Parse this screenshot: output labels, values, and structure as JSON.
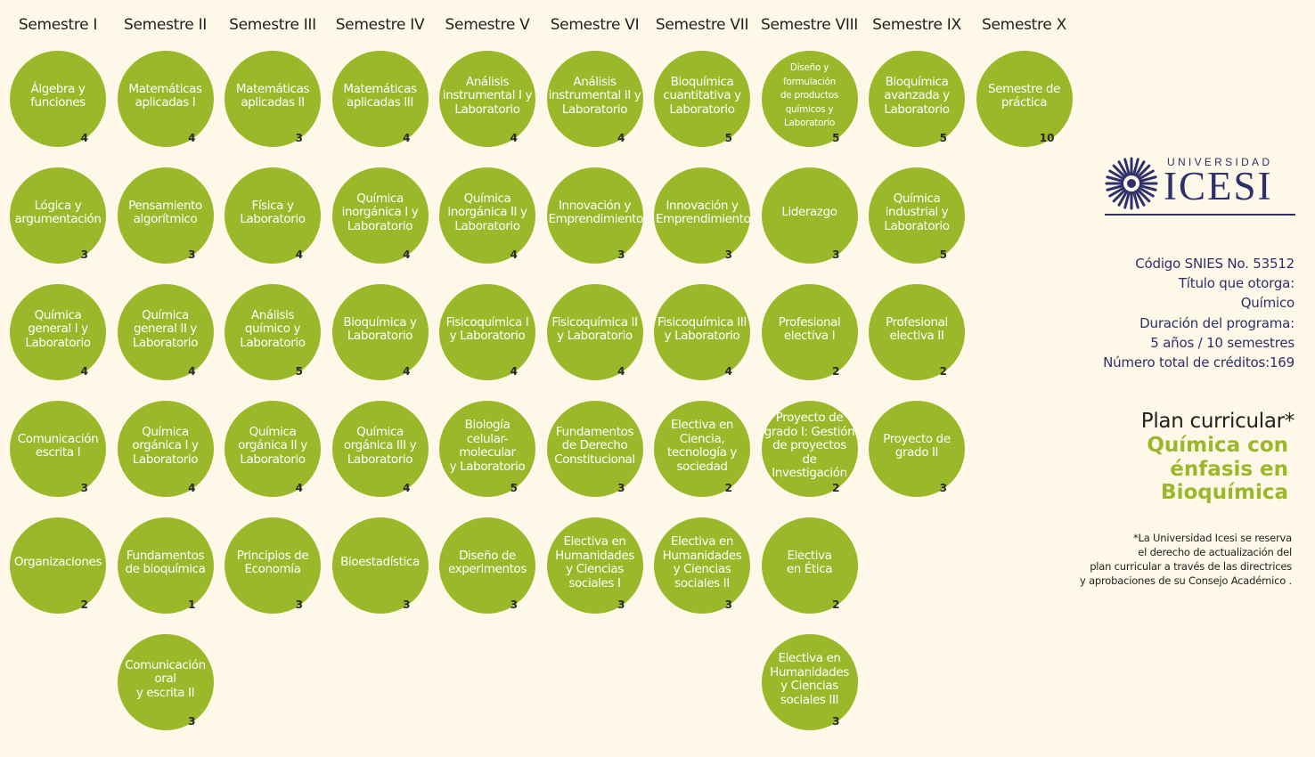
{
  "semesters": [
    {
      "title": "Semestre I",
      "courses": [
        {
          "name": "Álgebra y\nfunciones",
          "credits": "4"
        },
        {
          "name": "Lógica y\nargumentación",
          "credits": "3"
        },
        {
          "name": "Química\ngeneral I y\nLaboratorio",
          "credits": "4"
        },
        {
          "name": "Comunicación\nescrita I",
          "credits": "3"
        },
        {
          "name": "Organizaciones",
          "credits": "2"
        }
      ]
    },
    {
      "title": "Semestre II",
      "courses": [
        {
          "name": "Matemáticas\naplicadas I",
          "credits": "4"
        },
        {
          "name": "Pensamiento\nalgorítmico",
          "credits": "3"
        },
        {
          "name": "Química\ngeneral II y\nLaboratorio",
          "credits": "4"
        },
        {
          "name": "Química\norgánica I y\nLaboratorio",
          "credits": "4"
        },
        {
          "name": "Fundamentos\nde bioquímica",
          "credits": "1"
        },
        {
          "name": "Comunicación\noral\ny escrita II",
          "credits": "3"
        }
      ]
    },
    {
      "title": "Semestre III",
      "courses": [
        {
          "name": "Matemáticas\naplicadas II",
          "credits": "3"
        },
        {
          "name": "Física y\nLaboratorio",
          "credits": "4"
        },
        {
          "name": "Análisis\nquímico y\nLaboratorio",
          "credits": "5"
        },
        {
          "name": "Química\norgánica II y\nLaboratorio",
          "credits": "4"
        },
        {
          "name": "Principios de\nEconomía",
          "credits": "3"
        }
      ]
    },
    {
      "title": "Semestre IV",
      "courses": [
        {
          "name": "Matemáticas\naplicadas III",
          "credits": "4"
        },
        {
          "name": "Química\ninorgánica I y\nLaboratorio",
          "credits": "4"
        },
        {
          "name": "Bioquímica y\nLaboratorio",
          "credits": "4"
        },
        {
          "name": "Química\norgánica III y\nLaboratorio",
          "credits": "4"
        },
        {
          "name": "Bioestadística",
          "credits": "3"
        }
      ]
    },
    {
      "title": "Semestre V",
      "courses": [
        {
          "name": "Análisis\ninstrumental I y\nLaboratorio",
          "credits": "4"
        },
        {
          "name": "Química\ninorgánica II y\nLaboratorio",
          "credits": "4"
        },
        {
          "name": "Fisicoquímica I\ny Laboratorio",
          "credits": "4"
        },
        {
          "name": "Biología\ncelular-molecular\ny Laboratorio",
          "credits": "5"
        },
        {
          "name": "Diseño de\nexperimentos",
          "credits": "3"
        }
      ]
    },
    {
      "title": "Semestre VI",
      "courses": [
        {
          "name": "Análisis\ninstrumental II y\nLaboratorio",
          "credits": "4"
        },
        {
          "name": "Innovación y\nEmprendimiento",
          "credits": "3"
        },
        {
          "name": "Fisicoquímica II\ny Laboratorio",
          "credits": "4"
        },
        {
          "name": "Fundamentos\nde Derecho\nConstitucional",
          "credits": "3"
        },
        {
          "name": "Electiva en\nHumanidades\ny Ciencias\nsociales I",
          "credits": "3"
        }
      ]
    },
    {
      "title": "Semestre VII",
      "courses": [
        {
          "name": "Bioquímica\ncuantitativa y\nLaboratorio",
          "credits": "5"
        },
        {
          "name": "Innovación y\nEmprendimiento",
          "credits": "3"
        },
        {
          "name": "Fisicoquímica III\ny Laboratorio",
          "credits": "4"
        },
        {
          "name": "Electiva en\nCiencia,\ntecnología y\nsociedad",
          "credits": "2"
        },
        {
          "name": "Electiva en\nHumanidades\ny Ciencias\nsociales II",
          "credits": "3"
        }
      ]
    },
    {
      "title": "Semestre VIII",
      "courses": [
        {
          "name": "Diseño y\nformulación\nde productos\nquímicos y\nLaboratorio",
          "credits": "5",
          "small": true
        },
        {
          "name": "Liderazgo",
          "credits": "3"
        },
        {
          "name": "Profesional\nelectiva I",
          "credits": "2"
        },
        {
          "name": "Proyecto de\ngrado I: Gestión\nde proyectos\nde Investigación",
          "credits": "2"
        },
        {
          "name": "Electiva\nen Ética",
          "credits": "2"
        },
        {
          "name": "Electiva en\nHumanidades\ny Ciencias\nsociales III",
          "credits": "3"
        }
      ]
    },
    {
      "title": "Semestre IX",
      "courses": [
        {
          "name": "Bioquímica\navanzada y\nLaboratorio",
          "credits": "5"
        },
        {
          "name": "Química\nindustrial y\nLaboratorio",
          "credits": "5"
        },
        {
          "name": "Profesional\nelectiva II",
          "credits": "2"
        },
        {
          "name": "Proyecto de\ngrado II",
          "credits": "3"
        }
      ]
    },
    {
      "title": "Semestre X",
      "courses": [
        {
          "name": "Semestre de\npráctica",
          "credits": "10"
        }
      ]
    }
  ],
  "logo": {
    "top": "UNIVERSIDAD",
    "main": "ICESI"
  },
  "info": {
    "snies": "Código SNIES No. 53512",
    "titulo_label": "Título que otorga:",
    "titulo_value": "Químico",
    "duracion_label": "Duración del programa:",
    "duracion_value": "5 años / 10 semestres",
    "creditos": "Número total de créditos:169"
  },
  "plan": {
    "title": "Plan curricular*",
    "subtitle": "Química con\nénfasis en\nBioquímica"
  },
  "note": "*La Universidad Icesi se reserva\nel derecho de actualización del\nplan curricular a través de las directrices\ny aprobaciones de su Consejo Académico .",
  "colors": {
    "circle": "#9ab829",
    "brand": "#2e2f6b",
    "background": "#fdf8e7"
  }
}
